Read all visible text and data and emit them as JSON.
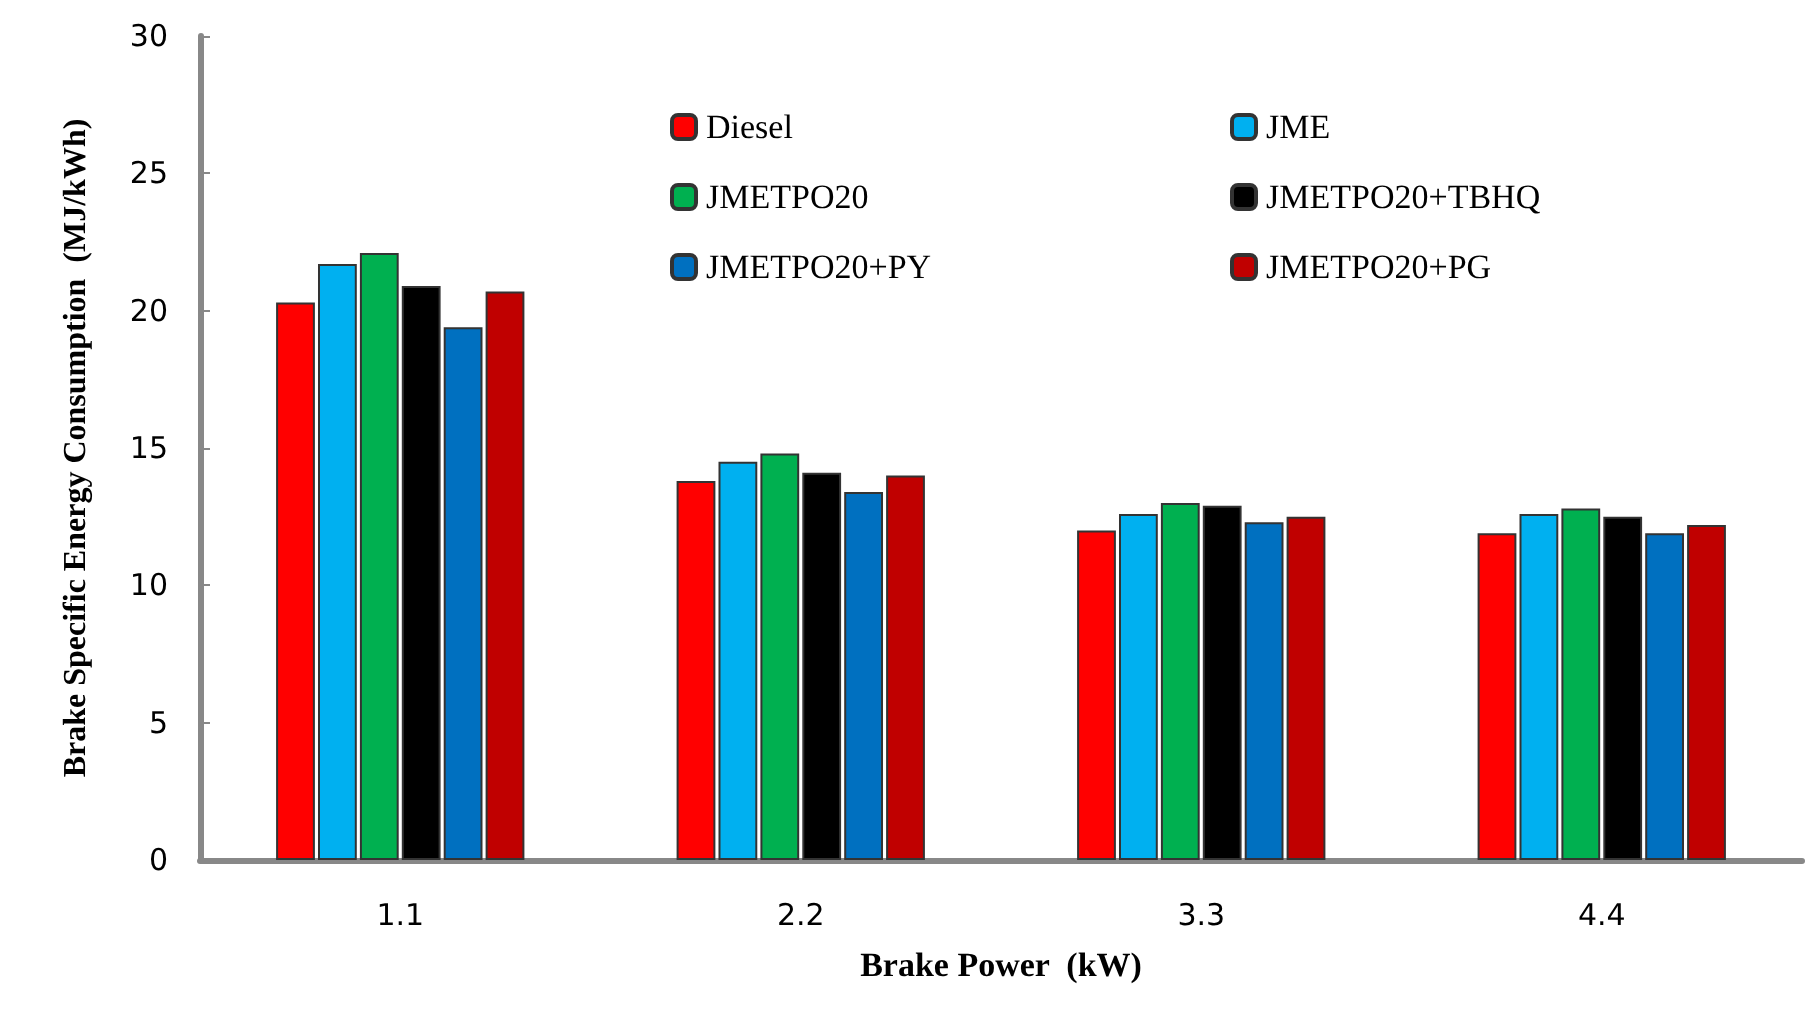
{
  "chart_data": {
    "type": "bar",
    "xlabel": "Brake Power  (kW)",
    "ylabel": "Brake Specific Energy Consumption  (MJ/kWh)",
    "categories": [
      "1.1",
      "2.2",
      "3.3",
      "4.4"
    ],
    "series": [
      {
        "name": "Diesel",
        "color": "#ff0000",
        "values": [
          20.3,
          13.8,
          12.0,
          11.9
        ]
      },
      {
        "name": "JME",
        "color": "#00b0f0",
        "values": [
          21.7,
          14.5,
          12.6,
          12.6
        ]
      },
      {
        "name": "JMETPO20",
        "color": "#00b050",
        "values": [
          22.1,
          14.8,
          13.0,
          12.8
        ]
      },
      {
        "name": "JMETPO20+TBHQ",
        "color": "#000000",
        "values": [
          20.9,
          14.1,
          12.9,
          12.5
        ]
      },
      {
        "name": "JMETPO20+PY",
        "color": "#0070c0",
        "values": [
          19.4,
          13.4,
          12.3,
          11.9
        ]
      },
      {
        "name": "JMETPO20+PG",
        "color": "#c00000",
        "values": [
          20.7,
          14.0,
          12.5,
          12.2
        ]
      }
    ],
    "ylim": [
      0,
      30
    ],
    "yticks": [
      0,
      5,
      10,
      15,
      20,
      25,
      30
    ],
    "grid": false,
    "legend": "top"
  }
}
